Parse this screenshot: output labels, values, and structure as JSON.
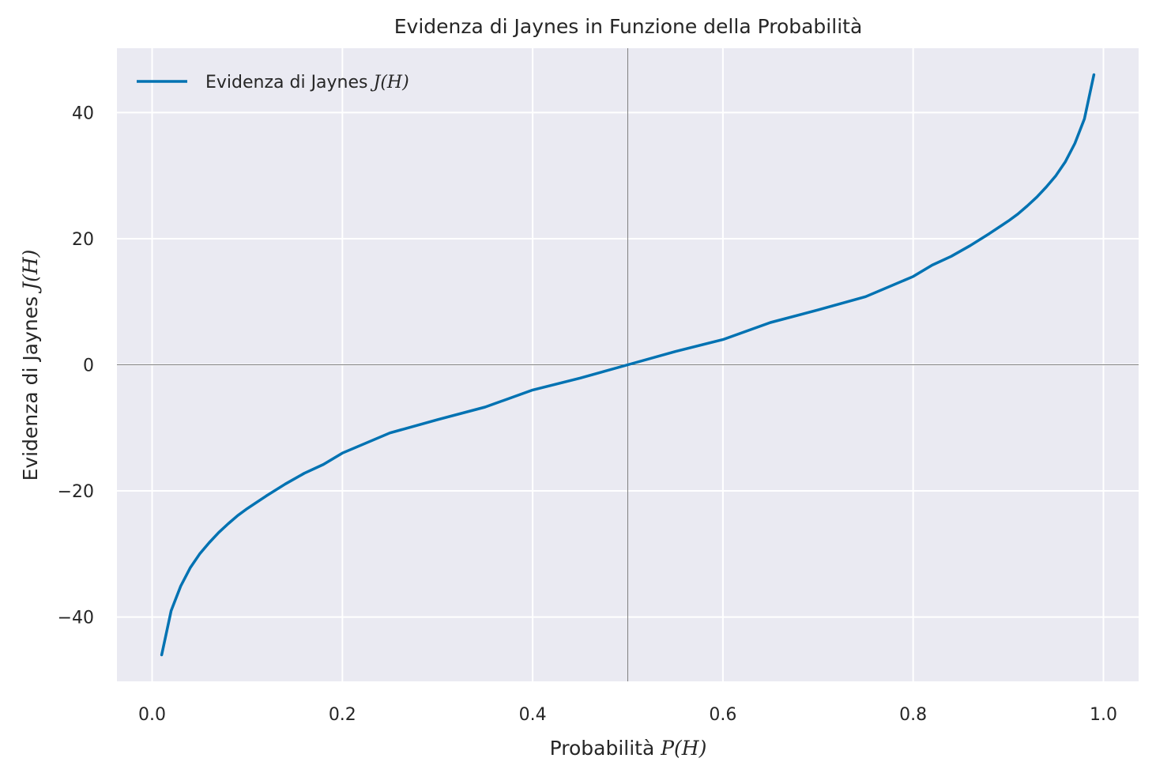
{
  "chart_data": {
    "type": "line",
    "title": "Evidenza di Jaynes in Funzione della Probabilità",
    "xlabel": {
      "text": "Probabilità ",
      "math": "P(H)"
    },
    "ylabel": {
      "text": "Evidenza di Jaynes ",
      "math": "J(H)"
    },
    "xlim": [
      -0.037,
      1.037
    ],
    "ylim": [
      -50.2,
      50.2
    ],
    "x_ticks": [
      0.0,
      0.2,
      0.4,
      0.6,
      0.8,
      1.0
    ],
    "x_tick_labels": [
      "0.0",
      "0.2",
      "0.4",
      "0.6",
      "0.8",
      "1.0"
    ],
    "y_ticks": [
      -40,
      -20,
      0,
      20,
      40
    ],
    "y_tick_labels": [
      "−40",
      "−20",
      "0",
      "20",
      "40"
    ],
    "grid": true,
    "reference_lines": {
      "x": 0.5,
      "y": 0
    },
    "legend_position": "upper-left",
    "series": [
      {
        "name": {
          "text": "Evidenza di Jaynes ",
          "math": "J(H)"
        },
        "color": "#0072b2",
        "x": [
          0.01,
          0.02,
          0.03,
          0.04,
          0.05,
          0.06,
          0.07,
          0.08,
          0.09,
          0.1,
          0.12,
          0.14,
          0.16,
          0.18,
          0.2,
          0.25,
          0.3,
          0.35,
          0.4,
          0.45,
          0.5,
          0.55,
          0.6,
          0.65,
          0.7,
          0.75,
          0.8,
          0.82,
          0.84,
          0.86,
          0.88,
          0.9,
          0.91,
          0.92,
          0.93,
          0.94,
          0.95,
          0.96,
          0.97,
          0.98,
          0.99
        ],
        "y": [
          -46.0,
          -39.0,
          -35.1,
          -32.2,
          -30.0,
          -28.2,
          -26.6,
          -25.2,
          -23.9,
          -22.8,
          -20.8,
          -18.9,
          -17.2,
          -15.8,
          -14.0,
          -10.8,
          -8.7,
          -6.7,
          -4.0,
          -2.1,
          0.0,
          2.1,
          4.0,
          6.7,
          8.7,
          10.8,
          14.0,
          15.8,
          17.2,
          18.9,
          20.8,
          22.8,
          23.9,
          25.2,
          26.6,
          28.2,
          30.0,
          32.2,
          35.1,
          39.0,
          46.0
        ]
      }
    ]
  },
  "colors": {
    "plot_background": "#eaeaf2",
    "grid": "#ffffff",
    "reference_line": "#808080",
    "text": "#262626"
  }
}
